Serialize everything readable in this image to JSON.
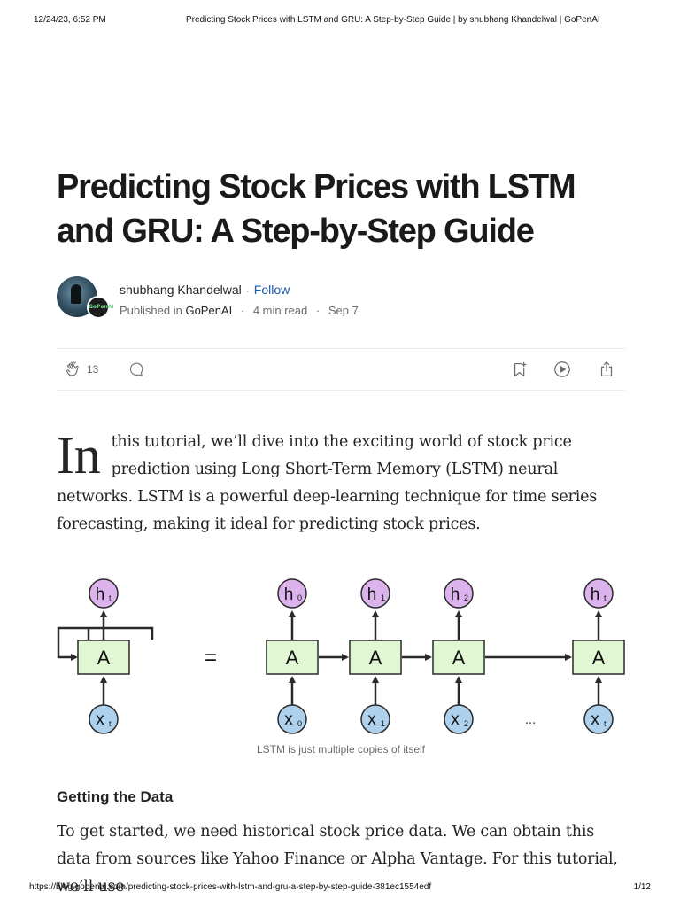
{
  "print_header": {
    "datetime": "12/24/23, 6:52 PM",
    "doc_title": "Predicting Stock Prices with LSTM and GRU: A Step-by-Step Guide | by shubhang Khandelwal | GoPenAI"
  },
  "article": {
    "title": "Predicting Stock Prices with LSTM and GRU: A Step-by-Step Guide",
    "author": {
      "name": "shubhang Khandelwal",
      "follow_label": "Follow",
      "published_prefix": "Published in",
      "publication": "GoPenAI",
      "read_time": "4 min read",
      "date": "Sep 7",
      "badge_text": "GoPenAI"
    },
    "actions": {
      "clap_count": "13",
      "icons": [
        "clap-icon",
        "comment-icon",
        "bookmark-add-icon",
        "play-icon",
        "share-icon"
      ]
    },
    "intro": {
      "dropcap": "In",
      "text": "this tutorial, we’ll dive into the exciting world of stock price prediction using Long Short-Term Memory (LSTM) neural networks. LSTM is a powerful deep-learning technique for time series forecasting, making it ideal for predicting stock prices."
    },
    "figure": {
      "caption": "LSTM is just multiple copies of itself",
      "cell_label": "A",
      "equals": "=",
      "ellipsis": "...",
      "rolled_output": "h",
      "rolled_output_sub": "t",
      "rolled_input": "x",
      "rolled_input_sub": "t",
      "unrolled": [
        {
          "h": "h",
          "h_sub": "0",
          "x": "x",
          "x_sub": "0"
        },
        {
          "h": "h",
          "h_sub": "1",
          "x": "x",
          "x_sub": "1"
        },
        {
          "h": "h",
          "h_sub": "2",
          "x": "x",
          "x_sub": "2"
        },
        {
          "h": "h",
          "h_sub": "t",
          "x": "x",
          "x_sub": "t"
        }
      ],
      "colors": {
        "output_fill": "#dcb3ec",
        "input_fill": "#aed2ee",
        "cell_fill": "#e1f7d3",
        "stroke": "#2a2a2a"
      }
    },
    "section_heading": "Getting the Data",
    "body": "To get started, we need historical stock price data. We can obtain this data from sources like Yahoo Finance or Alpha Vantage. For this tutorial, we’ll use"
  },
  "print_footer": {
    "url": "https://blog.gopenai.com/predicting-stock-prices-with-lstm-and-gru-a-step-by-step-guide-381ec1554edf",
    "page": "1/12"
  }
}
